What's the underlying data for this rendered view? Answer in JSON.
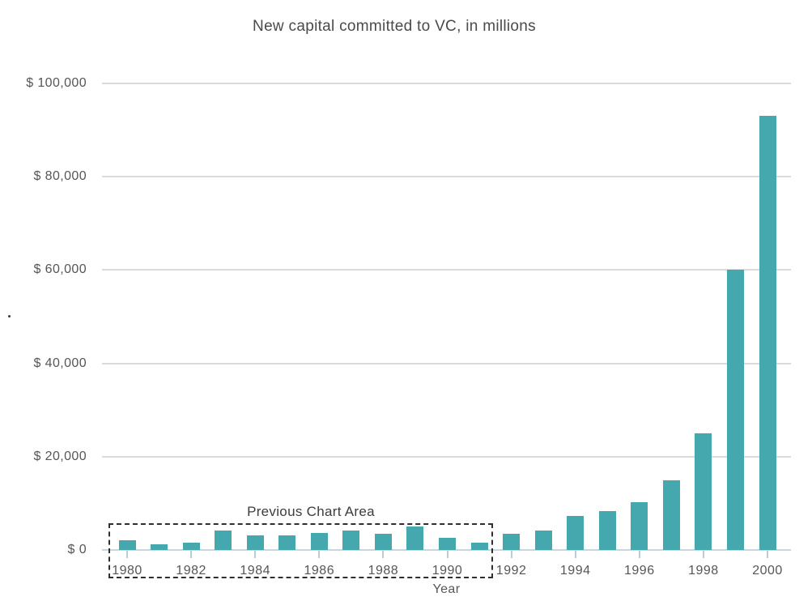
{
  "title": "New capital committed to VC, in millions",
  "chart_data": {
    "type": "bar",
    "title": "New capital committed to VC, in millions",
    "xlabel": "Year",
    "ylabel": "",
    "categories": [
      "1980",
      "1981",
      "1982",
      "1983",
      "1984",
      "1985",
      "1986",
      "1987",
      "1988",
      "1989",
      "1990",
      "1991",
      "1992",
      "1993",
      "1994",
      "1995",
      "1996",
      "1997",
      "1998",
      "1999",
      "2000"
    ],
    "values": [
      2100,
      1200,
      1600,
      4100,
      3100,
      3100,
      3700,
      4100,
      3400,
      5100,
      2600,
      1500,
      3400,
      4100,
      7300,
      8400,
      10300,
      15000,
      25000,
      60000,
      93000
    ],
    "ylim": [
      0,
      100000
    ],
    "y_ticks": [
      0,
      20000,
      40000,
      60000,
      80000,
      100000
    ],
    "y_tick_labels": [
      "$ 0",
      "$ 20,000",
      "$ 40,000",
      "$ 60,000",
      "$ 80,000",
      "$ 100,000"
    ],
    "x_ticks_shown": [
      "1980",
      "1982",
      "1984",
      "1986",
      "1988",
      "1990",
      "1992",
      "1994",
      "1996",
      "1998",
      "2000"
    ],
    "grid": "horizontal",
    "legend_position": "none",
    "bar_color": "#45a8ae",
    "annotation": {
      "label": "Previous Chart Area",
      "covers_categories": [
        "1980",
        "1981",
        "1982",
        "1983",
        "1984",
        "1985",
        "1986",
        "1987",
        "1988",
        "1989",
        "1990",
        "1991"
      ],
      "style": "dashed-rectangle"
    }
  }
}
